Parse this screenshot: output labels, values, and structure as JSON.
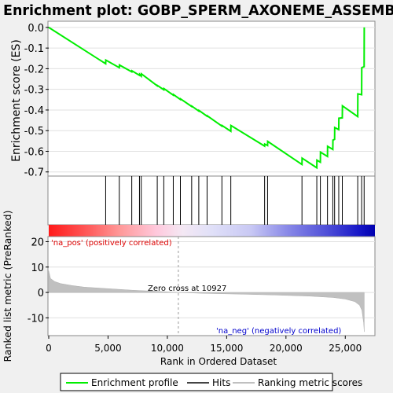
{
  "chart_data": [
    {
      "type": "line",
      "panel": "enrichment",
      "title": "Enrichment plot: GOBP_SPERM_AXONEME_ASSEMBLY",
      "ylabel": "Enrichment score (ES)",
      "ylim": [
        -0.72,
        0.03
      ],
      "xlim": [
        0,
        27500
      ],
      "yticks": [
        0.0,
        -0.1,
        -0.2,
        -0.3,
        -0.4,
        -0.5,
        -0.6,
        -0.7
      ],
      "ytick_labels": [
        "0.0",
        "-0.1",
        "-0.2",
        "-0.3",
        "-0.4",
        "-0.5",
        "-0.6",
        "-0.7"
      ],
      "grid": true,
      "series": [
        {
          "name": "Enrichment profile",
          "color": "#00ee00",
          "x": [
            0,
            4800,
            4810,
            5950,
            5960,
            7000,
            7010,
            7650,
            7660,
            7800,
            7810,
            9150,
            9160,
            9700,
            9710,
            10500,
            10510,
            11100,
            11110,
            12050,
            12060,
            12650,
            12660,
            13350,
            13360,
            14600,
            14610,
            15350,
            15360,
            18200,
            18210,
            18450,
            18460,
            21350,
            21360,
            22600,
            22610,
            22900,
            22910,
            23500,
            23510,
            23950,
            23960,
            24100,
            24110,
            24450,
            24460,
            24750,
            24760,
            26050,
            26060,
            26380,
            26390,
            26590,
            26600
          ],
          "y": [
            0.0,
            -0.176,
            -0.158,
            -0.195,
            -0.182,
            -0.215,
            -0.21,
            -0.232,
            -0.227,
            -0.236,
            -0.225,
            -0.283,
            -0.281,
            -0.302,
            -0.296,
            -0.328,
            -0.325,
            -0.349,
            -0.346,
            -0.383,
            -0.381,
            -0.405,
            -0.402,
            -0.43,
            -0.428,
            -0.478,
            -0.475,
            -0.503,
            -0.475,
            -0.575,
            -0.565,
            -0.572,
            -0.552,
            -0.664,
            -0.633,
            -0.68,
            -0.643,
            -0.653,
            -0.604,
            -0.625,
            -0.576,
            -0.591,
            -0.546,
            -0.542,
            -0.485,
            -0.495,
            -0.44,
            -0.438,
            -0.38,
            -0.432,
            -0.322,
            -0.326,
            -0.195,
            -0.19,
            0.0
          ]
        }
      ]
    },
    {
      "type": "scatter",
      "panel": "hits",
      "name": "Hits",
      "x": [
        4800,
        5950,
        7000,
        7650,
        7800,
        9150,
        9700,
        10500,
        11100,
        12050,
        12650,
        13350,
        14600,
        15350,
        18200,
        18450,
        21350,
        22600,
        22900,
        23500,
        23950,
        24100,
        24450,
        24750,
        26050,
        26380,
        26590
      ]
    },
    {
      "type": "area",
      "panel": "ranked_list",
      "ylabel": "Ranked list metric (PreRanked)",
      "xlabel": "Rank in Ordered Dataset",
      "ylim": [
        -17,
        22
      ],
      "xlim": [
        0,
        27500
      ],
      "yticks": [
        20,
        10,
        0,
        -10
      ],
      "ytick_labels": [
        "20",
        "10",
        "0",
        "-10"
      ],
      "xticks": [
        0,
        5000,
        10000,
        15000,
        20000,
        25000
      ],
      "xtick_labels": [
        "0",
        "5,000",
        "10,000",
        "15,000",
        "20,000",
        "25,000"
      ],
      "zero_cross": 10927,
      "series": [
        {
          "name": "Ranking metric scores",
          "color": "#c0c0c0",
          "x": [
            0,
            150,
            500,
            1000,
            2000,
            3000,
            5000,
            7000,
            9000,
            10927,
            13000,
            16000,
            19000,
            22000,
            24000,
            25000,
            25800,
            26200,
            26400,
            26550,
            26600
          ],
          "values": [
            8.5,
            5.5,
            4.3,
            3.5,
            2.7,
            2.1,
            1.5,
            0.9,
            0.45,
            0.0,
            -0.35,
            -0.65,
            -1.0,
            -1.45,
            -2.0,
            -2.6,
            -3.6,
            -5.0,
            -7.0,
            -12.0,
            -15.5
          ]
        }
      ]
    }
  ],
  "annotations": {
    "zero_cross_label": "Zero cross at 10927",
    "pos_label": "'na_pos' (positively correlated)",
    "neg_label": "'na_neg' (negatively correlated)",
    "pos_color": "#ff0000",
    "neg_color": "#0000ff"
  },
  "legend": {
    "position": "bottom",
    "items": [
      {
        "label": "Enrichment profile",
        "color": "#00ee00"
      },
      {
        "label": "Hits",
        "color": "#444444"
      },
      {
        "label": "Ranking metric scores",
        "color": "#c0c0c0"
      }
    ]
  }
}
